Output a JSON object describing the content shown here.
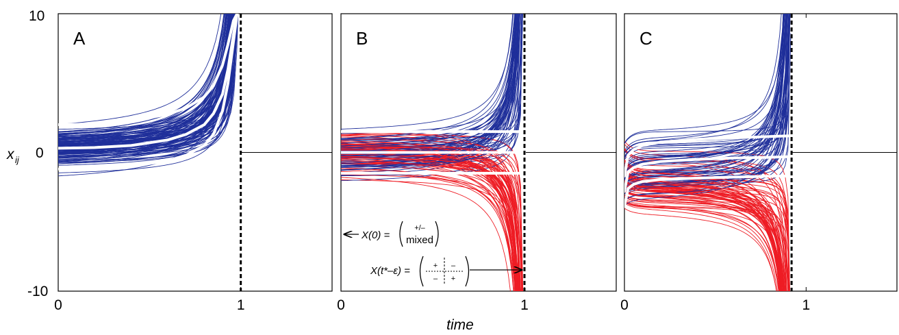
{
  "chart_data": {
    "type": "line",
    "xlabel": "time",
    "ylabel_main": "x",
    "ylabel_sub": "ij",
    "ylim": [
      -10,
      10
    ],
    "y_ticks": [
      "10",
      "0",
      "-10"
    ],
    "colors": {
      "positive": "#1f2f9a",
      "negative": "#ee1c24",
      "mean": "#ffffff"
    },
    "panels": [
      {
        "label": "A",
        "xlim": [
          0,
          1.5
        ],
        "x_ticks": [
          "0",
          "1"
        ],
        "blowup_time": 1.0,
        "red_trajectories": false,
        "mean_curves": [
          {
            "x": [
              0,
              0.2,
              0.4,
              0.6,
              0.7,
              0.8,
              0.85,
              0.9,
              0.93,
              0.96,
              0.98
            ],
            "y": [
              2.0,
              2.05,
              2.25,
              2.75,
              3.2,
              4.0,
              4.8,
              6.3,
              7.8,
              9.5,
              10
            ]
          },
          {
            "x": [
              0,
              0.2,
              0.4,
              0.6,
              0.7,
              0.8,
              0.85,
              0.9,
              0.93,
              0.96,
              0.98
            ],
            "y": [
              0.3,
              0.35,
              0.5,
              0.9,
              1.3,
              2.0,
              2.8,
              4.2,
              6.0,
              8.5,
              10
            ]
          },
          {
            "x": [
              0,
              0.2,
              0.4,
              0.6,
              0.7,
              0.8,
              0.85,
              0.9,
              0.93,
              0.96,
              0.98
            ],
            "y": [
              -1.2,
              -1.15,
              -1.0,
              -0.6,
              -0.2,
              0.5,
              1.3,
              3.0,
              5.0,
              8.0,
              10
            ]
          }
        ]
      },
      {
        "label": "B",
        "xlim": [
          0,
          1.5
        ],
        "x_ticks": [
          "0",
          "1"
        ],
        "blowup_time": 1.0,
        "red_trajectories": true,
        "mean_curves": [
          {
            "x": [
              0,
              1.0
            ],
            "y": [
              1.5,
              1.5
            ]
          },
          {
            "x": [
              0,
              1.0
            ],
            "y": [
              0.0,
              0.0
            ]
          },
          {
            "x": [
              0,
              1.0
            ],
            "y": [
              -1.5,
              -1.5
            ]
          }
        ],
        "annotations": {
          "initial_prefix": "X(0) =",
          "initial_top": "+/–",
          "initial_bottom": "mixed",
          "final_prefix": "X(t*–ε) =",
          "final_cells": [
            "+",
            "–",
            "–",
            "+"
          ]
        }
      },
      {
        "label": "C",
        "xlim": [
          0,
          1.5
        ],
        "x_ticks": [
          "0",
          "1"
        ],
        "blowup_time": 0.92,
        "red_trajectories": true,
        "mean_curves": [
          {
            "x": [
              0,
              0.02,
              0.05,
              0.1,
              0.2,
              0.4,
              0.6,
              0.8,
              0.92
            ],
            "y": [
              -1.7,
              -0.2,
              0.2,
              0.5,
              0.75,
              0.95,
              1.05,
              1.15,
              1.2
            ]
          },
          {
            "x": [
              0,
              0.02,
              0.05,
              0.1,
              0.2,
              0.4,
              0.6,
              0.8,
              0.92
            ],
            "y": [
              -2.8,
              -1.4,
              -1.1,
              -0.85,
              -0.65,
              -0.5,
              -0.4,
              -0.35,
              -0.3
            ]
          },
          {
            "x": [
              0,
              0.02,
              0.05,
              0.1,
              0.2,
              0.4,
              0.6,
              0.8,
              0.92
            ],
            "y": [
              -3.9,
              -2.6,
              -2.3,
              -2.1,
              -1.95,
              -1.85,
              -1.78,
              -1.72,
              -1.7
            ]
          }
        ]
      }
    ]
  }
}
